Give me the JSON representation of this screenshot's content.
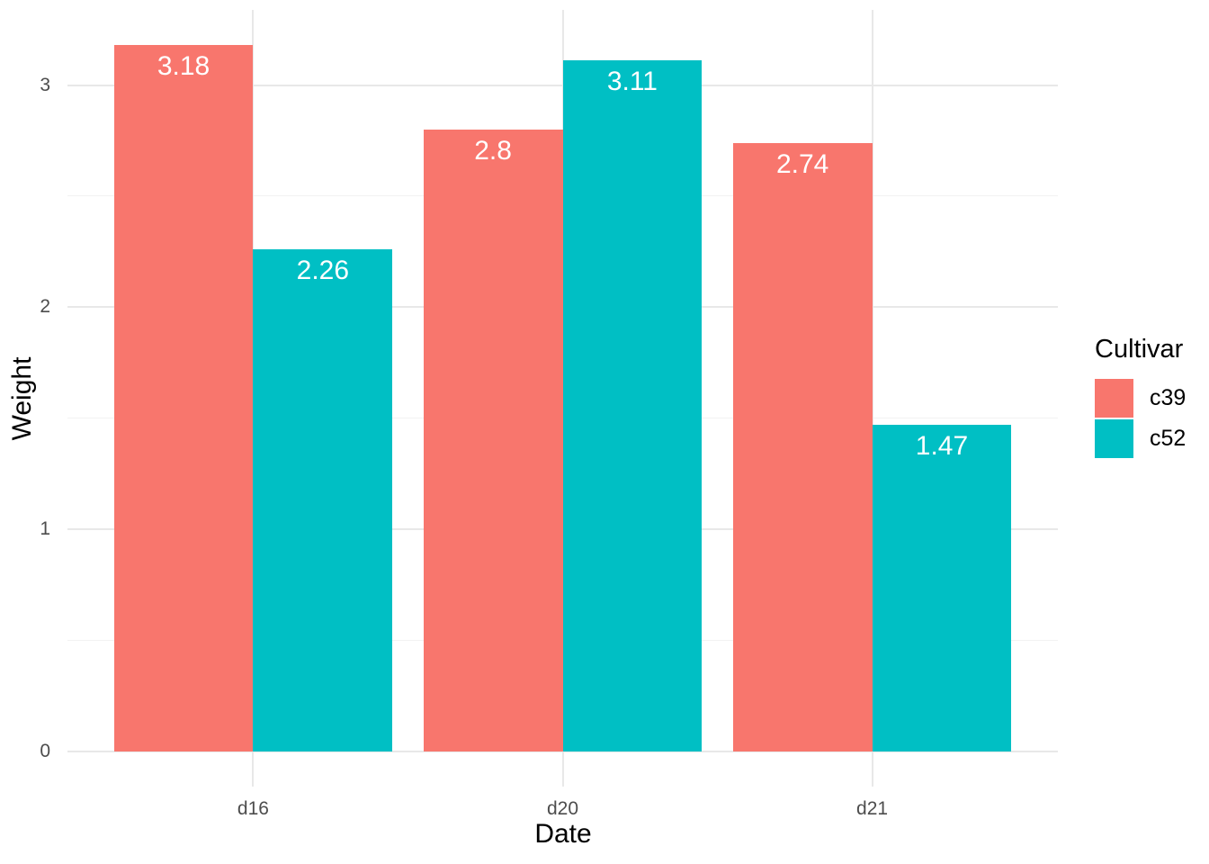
{
  "chart_data": {
    "type": "bar",
    "title": "",
    "xlabel": "Date",
    "ylabel": "Weight",
    "categories": [
      "d16",
      "d20",
      "d21"
    ],
    "series": [
      {
        "name": "c39",
        "color": "#F8766D",
        "values": [
          3.18,
          2.8,
          2.74
        ],
        "value_labels": [
          "3.18",
          "2.8",
          "2.74"
        ]
      },
      {
        "name": "c52",
        "color": "#00BFC4",
        "values": [
          2.26,
          3.11,
          1.47
        ],
        "value_labels": [
          "2.26",
          "3.11",
          "1.47"
        ]
      }
    ],
    "y_axis": {
      "major_ticks": [
        0,
        1,
        2,
        3
      ],
      "minor_ticks": [
        0.5,
        1.5,
        2.5
      ],
      "lim": [
        -0.159,
        3.339
      ]
    },
    "x_axis": {
      "positions": [
        1,
        2,
        3
      ],
      "lim": [
        0.4,
        3.6
      ],
      "bar_width": 0.45
    },
    "legend": {
      "title": "Cultivar",
      "position": "right",
      "entries": [
        {
          "label": "c39",
          "color": "#F8766D"
        },
        {
          "label": "c52",
          "color": "#00BFC4"
        }
      ]
    },
    "grid": {
      "major_color": "#E8E8E8",
      "minor_color": "#F2F2F2"
    },
    "colors": {
      "bar_label": "#FFFFFF",
      "tick_label": "#4D4D4D",
      "axis_title": "#000000",
      "background": "#FFFFFF"
    }
  }
}
